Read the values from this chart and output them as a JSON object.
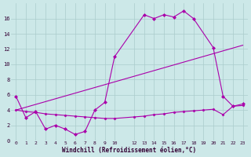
{
  "bg_color": "#cce8e8",
  "grid_color": "#aacccc",
  "line_color": "#aa00aa",
  "x_ticks": [
    0,
    1,
    2,
    3,
    4,
    5,
    6,
    7,
    8,
    9,
    10,
    12,
    13,
    14,
    15,
    16,
    17,
    18,
    19,
    20,
    21,
    22,
    23
  ],
  "xlabel": "Windchill (Refroidissement éolien,°C)",
  "ylim": [
    0,
    18
  ],
  "yticks": [
    0,
    2,
    4,
    6,
    8,
    10,
    12,
    14,
    16
  ],
  "line1_x": [
    0,
    1,
    2,
    3,
    4,
    5,
    6,
    7,
    8,
    9,
    10,
    13,
    14,
    15,
    16,
    17,
    18,
    20,
    21,
    22,
    23
  ],
  "line1_y": [
    5.8,
    3.0,
    3.8,
    1.5,
    2.0,
    1.5,
    0.8,
    1.2,
    4.0,
    5.0,
    11.0,
    16.5,
    16.0,
    16.5,
    16.2,
    17.0,
    16.0,
    12.2,
    5.8,
    4.5,
    4.8
  ],
  "line2_x": [
    0,
    23
  ],
  "line2_y": [
    4.0,
    12.5
  ],
  "line3_x": [
    0,
    1,
    2,
    3,
    4,
    5,
    6,
    7,
    8,
    9,
    10,
    12,
    13,
    14,
    15,
    16,
    17,
    18,
    19,
    20,
    21,
    22,
    23
  ],
  "line3_y": [
    4.0,
    3.8,
    3.7,
    3.5,
    3.4,
    3.3,
    3.2,
    3.1,
    3.0,
    2.9,
    2.9,
    3.1,
    3.2,
    3.4,
    3.5,
    3.7,
    3.8,
    3.9,
    4.0,
    4.1,
    3.4,
    4.5,
    4.6
  ]
}
